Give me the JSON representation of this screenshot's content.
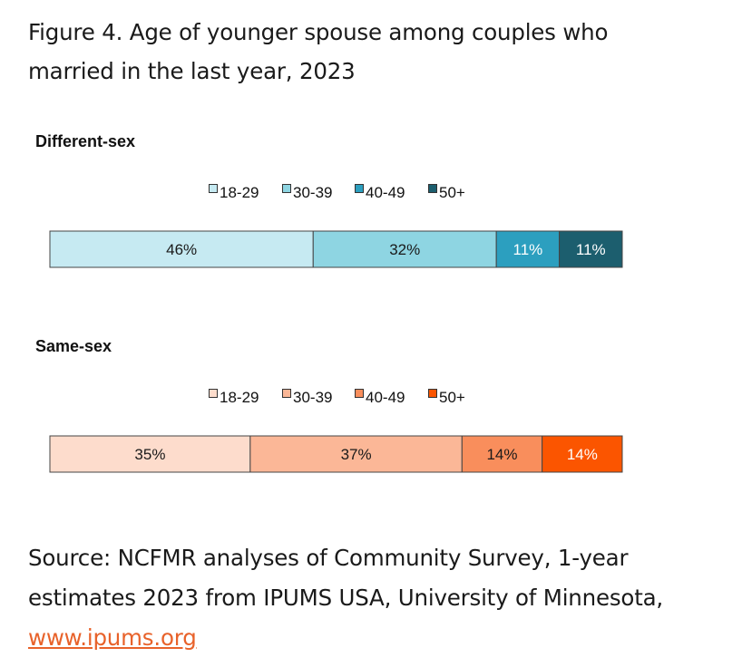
{
  "title": "Figure 4. Age of younger spouse among couples who married in the last year, 2023",
  "source": {
    "text": "Source: NCFMR analyses of Community Survey, 1-year estimates 2023 from IPUMS USA, University of Minnesota, ",
    "link": "www.ipums.org"
  },
  "chart_data": [
    {
      "type": "bar",
      "orientation": "horizontal-stacked-100",
      "title": "Different-sex",
      "categories": [
        "18-29",
        "30-39",
        "40-49",
        "50+"
      ],
      "values": [
        46,
        32,
        11,
        11
      ],
      "labels": [
        "46%",
        "32%",
        "11%",
        "11%"
      ],
      "colors": [
        "#c6eaf2",
        "#8ed5e2",
        "#2c9fbf",
        "#1c5e6e"
      ],
      "label_colors": [
        "#1a1a1a",
        "#1a1a1a",
        "#ffffff",
        "#ffffff"
      ],
      "legend": "top"
    },
    {
      "type": "bar",
      "orientation": "horizontal-stacked-100",
      "title": "Same-sex",
      "categories": [
        "18-29",
        "30-39",
        "40-49",
        "50+"
      ],
      "values": [
        35,
        37,
        14,
        14
      ],
      "labels": [
        "35%",
        "37%",
        "14%",
        "14%"
      ],
      "colors": [
        "#fddccc",
        "#fbb797",
        "#f98e5c",
        "#fb5500"
      ],
      "label_colors": [
        "#1a1a1a",
        "#1a1a1a",
        "#1a1a1a",
        "#ffffff"
      ],
      "legend": "top"
    }
  ]
}
